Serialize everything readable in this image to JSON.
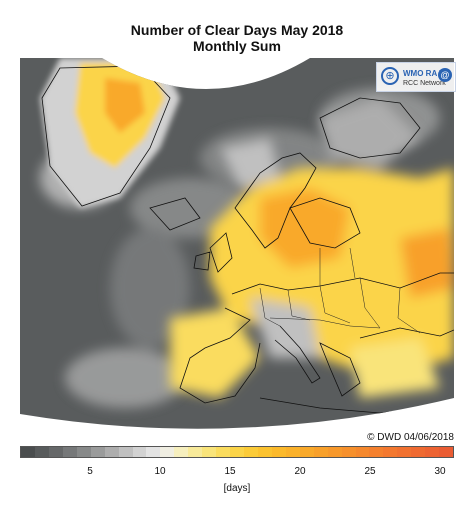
{
  "map": {
    "title": "Number of Clear Days May 2018",
    "subtitle": "Monthly Sum",
    "credit": "© DWD 04/06/2018",
    "region": "Europe and North Atlantic",
    "logo": {
      "organization": "WMO RA VI",
      "network": "RCC Network",
      "icon": "wmo-globe-icon"
    },
    "background_colors": {
      "ocean_low": "#595c5d",
      "land_outline": "#111111",
      "no_data": "#ffffff"
    }
  },
  "legend": {
    "unit": "[days]",
    "min": 0,
    "max": 31,
    "ticks": [
      "5",
      "10",
      "15",
      "20",
      "25",
      "30"
    ],
    "tick_values": [
      5,
      10,
      15,
      20,
      25,
      30
    ],
    "colors": [
      "#4a4d4e",
      "#585b5c",
      "#666869",
      "#767879",
      "#878989",
      "#9a9b9b",
      "#adadad",
      "#c0c0c0",
      "#d2d2d2",
      "#e3e3e3",
      "#f0eee2",
      "#f6efbe",
      "#f8ea9a",
      "#f9e47a",
      "#fadc5e",
      "#fbd448",
      "#fbcb38",
      "#fbc22f",
      "#fbb92b",
      "#fab12a",
      "#f9a92a",
      "#f8a02a",
      "#f7982b",
      "#f6902c",
      "#f5882d",
      "#f4802e",
      "#f3782f",
      "#f17130",
      "#ef6a31",
      "#ed6332",
      "#ea5c33"
    ]
  }
}
